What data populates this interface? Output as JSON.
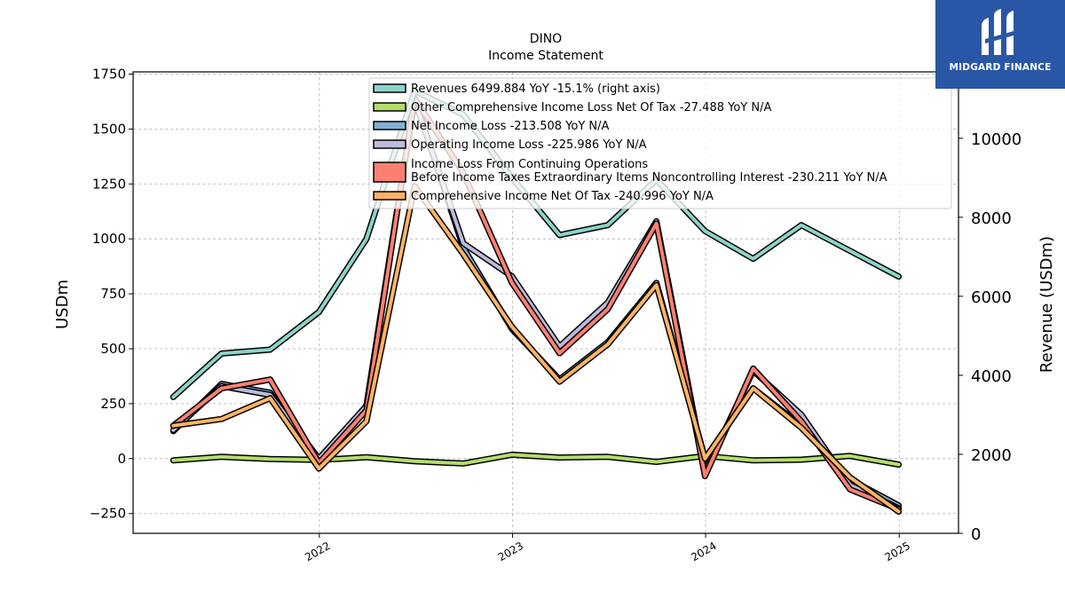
{
  "logo": {
    "text": "MIDGARD FINANCE",
    "color": "#2a56a6"
  },
  "chart_data": {
    "type": "line",
    "title": "DINO",
    "subtitle": "Income Statement",
    "ylabel": "USDm",
    "ylabel_right": "Revenue (USDm)",
    "ylim": [
      -340,
      1760
    ],
    "ylim_right": [
      0,
      11680
    ],
    "yticks": [
      -250,
      0,
      250,
      500,
      750,
      1000,
      1250,
      1500,
      1750
    ],
    "yticks_right": [
      0,
      2000,
      4000,
      6000,
      8000,
      10000
    ],
    "xlim": [
      "2021-01-14",
      "2025-04-23"
    ],
    "xticks": [
      {
        "date": "2022-01-01",
        "label": "2022"
      },
      {
        "date": "2023-01-01",
        "label": "2023"
      },
      {
        "date": "2024-01-01",
        "label": "2024"
      },
      {
        "date": "2025-01-01",
        "label": "2025"
      }
    ],
    "x": [
      "2021-03-31",
      "2021-06-30",
      "2021-09-30",
      "2021-12-31",
      "2022-03-31",
      "2022-06-30",
      "2022-09-30",
      "2022-12-31",
      "2023-03-31",
      "2023-06-30",
      "2023-09-30",
      "2023-12-31",
      "2024-03-31",
      "2024-06-30",
      "2024-09-30",
      "2024-12-31"
    ],
    "grid": true,
    "legend_position": "top-center",
    "series": [
      {
        "name": "Revenues  6499.884 YoY -15.1% (right axis)",
        "axis": "right",
        "color": "#8dd3c7",
        "values": [
          3450,
          4550,
          4650,
          5600,
          7450,
          11200,
          10600,
          9000,
          7550,
          7800,
          8950,
          7650,
          6950,
          7800,
          7150,
          6500
        ]
      },
      {
        "name": "Other Comprehensive Income Loss Net Of Tax  -27.488 YoY N/A",
        "axis": "left",
        "color": "#b3de69",
        "values": [
          -8,
          8,
          -2,
          -6,
          6,
          -12,
          -22,
          18,
          5,
          8,
          -15,
          12,
          -8,
          -5,
          12,
          -27
        ]
      },
      {
        "name": "Net Income Loss  -213.508 YoY N/A",
        "axis": "left",
        "color": "#80b1d3",
        "values": [
          125,
          340,
          300,
          -15,
          240,
          1640,
          960,
          590,
          360,
          530,
          800,
          0,
          320,
          150,
          -95,
          -213
        ]
      },
      {
        "name": "Operating Income Loss  -225.986 YoY N/A",
        "axis": "left",
        "color": "#bebada",
        "values": [
          130,
          330,
          290,
          0,
          240,
          1630,
          980,
          830,
          510,
          710,
          1080,
          -60,
          400,
          200,
          -120,
          -226
        ]
      },
      {
        "name": "Income Loss From Continuing Operations\nBefore Income Taxes Extraordinary Items Noncontrolling Interest  -230.211 YoY N/A",
        "axis": "left",
        "color": "#fb8072",
        "values": [
          150,
          320,
          360,
          -20,
          220,
          1640,
          1300,
          800,
          480,
          680,
          1070,
          -80,
          410,
          170,
          -140,
          -230
        ]
      },
      {
        "name": "Comprehensive Income Net Of Tax  -240.996 YoY N/A",
        "axis": "left",
        "color": "#fdb462",
        "values": [
          150,
          180,
          275,
          -45,
          170,
          1240,
          930,
          600,
          350,
          520,
          790,
          0,
          320,
          140,
          -85,
          -241
        ]
      }
    ]
  }
}
